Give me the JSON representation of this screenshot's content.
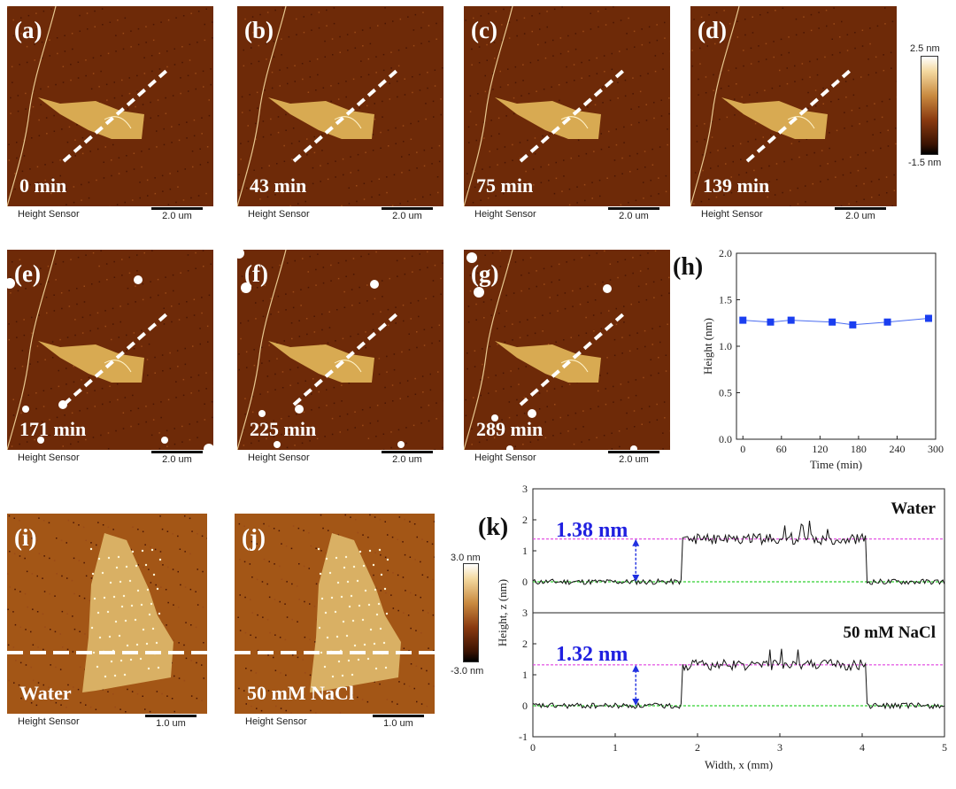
{
  "afm_panels": [
    {
      "label": "(a)",
      "time": "0 min",
      "sensor": "Height Sensor",
      "scale": "2.0 um"
    },
    {
      "label": "(b)",
      "time": "43 min",
      "sensor": "Height Sensor",
      "scale": "2.0 um"
    },
    {
      "label": "(c)",
      "time": "75 min",
      "sensor": "Height Sensor",
      "scale": "2.0 um"
    },
    {
      "label": "(d)",
      "time": "139 min",
      "sensor": "Height Sensor",
      "scale": "2.0 um"
    },
    {
      "label": "(e)",
      "time": "171 min",
      "sensor": "Height Sensor",
      "scale": "2.0 um"
    },
    {
      "label": "(f)",
      "time": "225 min",
      "sensor": "Height Sensor",
      "scale": "2.0 um"
    },
    {
      "label": "(g)",
      "time": "289 min",
      "sensor": "Height Sensor",
      "scale": "2.0 um"
    },
    {
      "label": "(i)",
      "time": "Water",
      "sensor": "Height Sensor",
      "scale": "1.0 um"
    },
    {
      "label": "(j)",
      "time": "50 mM NaCl",
      "sensor": "Height Sensor",
      "scale": "1.0 um"
    }
  ],
  "colorbar_top": {
    "max": "2.5 nm",
    "min": "-1.5 nm"
  },
  "colorbar_bottom": {
    "max": "3.0 nm",
    "min": "-3.0 nm"
  },
  "chart_data": [
    {
      "panel": "(h)",
      "type": "line",
      "xlabel": "Time (min)",
      "ylabel": "Height (nm)",
      "xlim": [
        -10,
        300
      ],
      "ylim": [
        0,
        2.0
      ],
      "xticks": [
        "0",
        "60",
        "120",
        "180",
        "240",
        "300"
      ],
      "yticks": [
        "0.0",
        "0.5",
        "1.0",
        "1.5",
        "2.0"
      ],
      "series": [
        {
          "name": "height",
          "x": [
            0,
            43,
            75,
            139,
            171,
            225,
            289
          ],
          "values": [
            1.28,
            1.26,
            1.28,
            1.26,
            1.23,
            1.26,
            1.3
          ]
        }
      ]
    },
    {
      "panel": "(k)",
      "type": "line",
      "xlabel": "Width, x (mm)",
      "ylabel": "Height, z (nm)",
      "xlim": [
        0,
        5
      ],
      "ylim": [
        -1,
        3
      ],
      "xticks": [
        "0",
        "1",
        "2",
        "3",
        "4",
        "5"
      ],
      "yticks": [
        "-1",
        "0",
        "1",
        "2",
        "3"
      ],
      "subplots": [
        {
          "title": "Water",
          "annotation": "1.38 nm",
          "upper_level": 1.38,
          "lower_level": 0.0,
          "step_start": 1.82,
          "step_end": 4.05
        },
        {
          "title": "50 mM NaCl",
          "annotation": "1.32 nm",
          "upper_level": 1.32,
          "lower_level": 0.0,
          "step_start": 1.82,
          "step_end": 4.05
        }
      ]
    }
  ]
}
